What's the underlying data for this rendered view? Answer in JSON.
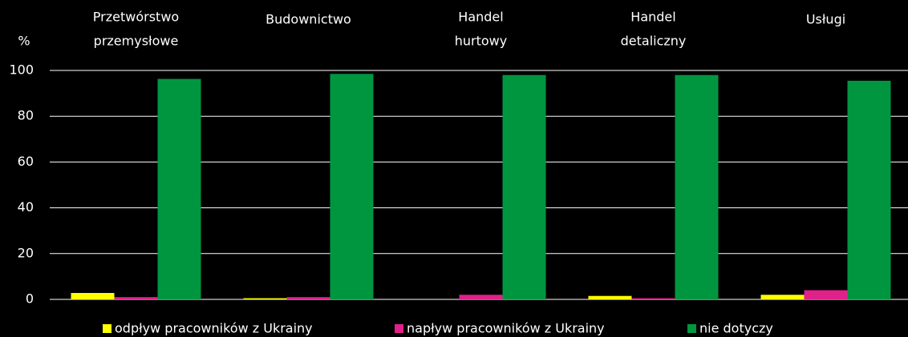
{
  "chart_data": {
    "type": "bar",
    "y_label": "%",
    "categories": [
      [
        "Przetwórstwo",
        "przemysłowe"
      ],
      [
        "Budownictwo"
      ],
      [
        "Handel",
        "hurtowy"
      ],
      [
        "Handel",
        "detaliczny"
      ],
      [
        "Usługi"
      ]
    ],
    "series": [
      {
        "name": "odpływ pracowników z Ukrainy",
        "color": "#ffff00",
        "values": [
          2.8,
          0.5,
          0,
          1.5,
          2
        ]
      },
      {
        "name": "napływ pracowników z Ukrainy",
        "color": "#e0218a",
        "values": [
          1,
          1,
          2,
          0.5,
          4
        ]
      },
      {
        "name": "nie dotyczy",
        "color": "#009640",
        "values": [
          96.3,
          98.5,
          98,
          98,
          95.5
        ]
      }
    ],
    "ylim": [
      0,
      100
    ],
    "yticks": [
      0,
      20,
      40,
      60,
      80,
      100
    ],
    "grid": true,
    "legend": "bottom"
  }
}
